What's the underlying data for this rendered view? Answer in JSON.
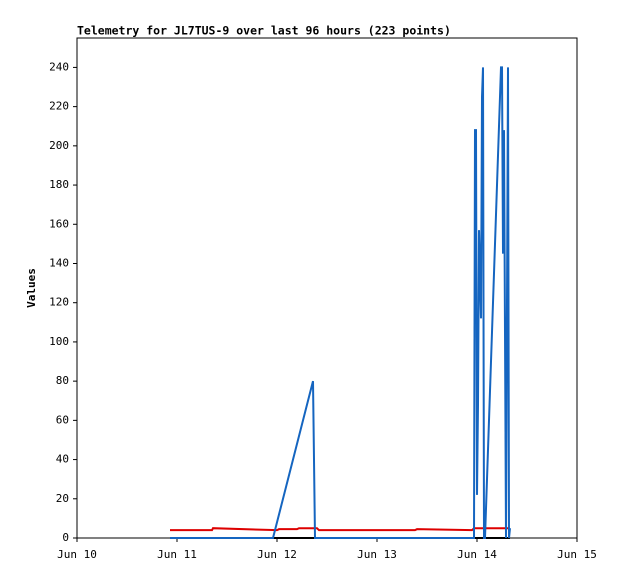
{
  "chart_data": {
    "type": "line",
    "title": "Telemetry for JL7TUS-9 over last 96 hours (223 points)",
    "y_label": "Values",
    "xlim": [
      10,
      15
    ],
    "xticks": [
      {
        "value": 10,
        "label": "Jun 10"
      },
      {
        "value": 11,
        "label": "Jun 11"
      },
      {
        "value": 12,
        "label": "Jun 12"
      },
      {
        "value": 13,
        "label": "Jun 13"
      },
      {
        "value": 14,
        "label": "Jun 14"
      },
      {
        "value": 15,
        "label": "Jun 15"
      }
    ],
    "ylim": [
      0,
      255
    ],
    "yticks": [
      0,
      20,
      40,
      60,
      80,
      100,
      120,
      140,
      160,
      180,
      200,
      220,
      240
    ],
    "series": [
      {
        "color": "#000000",
        "x": [
          10.93,
          14.33
        ],
        "values": [
          0,
          0
        ]
      },
      {
        "color": "#dd0000",
        "x": [
          10.93,
          11.35,
          11.36,
          12.0,
          12.02,
          12.2,
          12.22,
          12.4,
          12.42,
          13.38,
          13.4,
          13.95,
          13.97,
          14.33
        ],
        "values": [
          4,
          4,
          5,
          4,
          4.5,
          4.5,
          5,
          5,
          4,
          4,
          4.5,
          4,
          5,
          5
        ]
      },
      {
        "color": "#1565c0",
        "x": [
          10.93,
          11.96,
          12.36,
          12.37,
          12.38,
          13.97,
          13.98,
          13.99,
          14.0,
          14.01,
          14.02,
          14.04,
          14.05,
          14.06,
          14.07,
          14.08,
          14.24,
          14.25,
          14.26,
          14.27,
          14.28,
          14.29,
          14.31,
          14.32,
          14.33
        ],
        "values": [
          0,
          0,
          80,
          40,
          0,
          0,
          208,
          208,
          22,
          68,
          157,
          112,
          225,
          240,
          0,
          0,
          240,
          240,
          145,
          208,
          105,
          0,
          240,
          0,
          5
        ]
      }
    ]
  }
}
